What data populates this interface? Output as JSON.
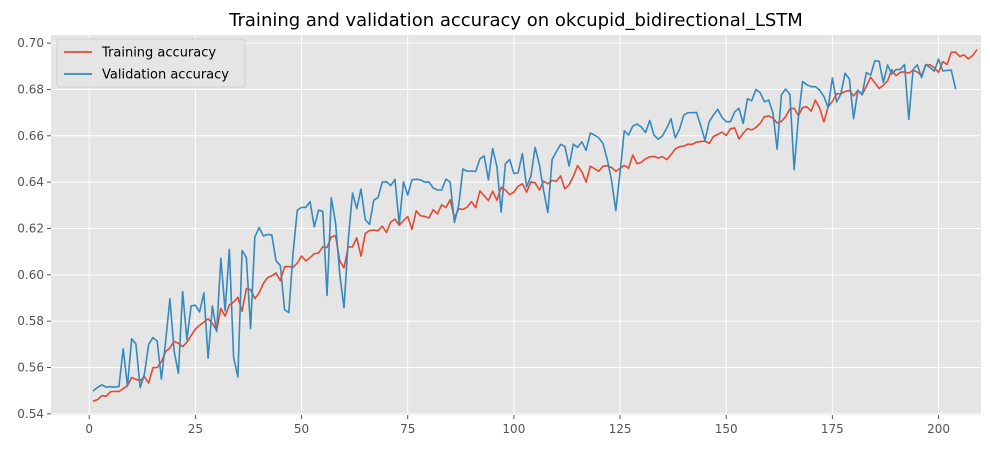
{
  "chart_data": {
    "type": "line",
    "title": "Training and validation accuracy on okcupid_bidirectional_LSTM",
    "xlabel": "",
    "ylabel": "",
    "xlim": [
      -9,
      210
    ],
    "ylim": [
      0.5395,
      0.7035
    ],
    "x_ticks": [
      0,
      25,
      50,
      75,
      100,
      125,
      150,
      175,
      200
    ],
    "y_ticks": [
      0.54,
      0.56,
      0.58,
      0.6,
      0.62,
      0.64,
      0.66,
      0.68,
      0.7
    ],
    "x_tick_labels": [
      "0",
      "25",
      "50",
      "75",
      "100",
      "125",
      "150",
      "175",
      "200"
    ],
    "y_tick_labels": [
      "0.54",
      "0.56",
      "0.58",
      "0.60",
      "0.62",
      "0.64",
      "0.66",
      "0.68",
      "0.70"
    ],
    "grid": true,
    "legend_position": "top-left",
    "x_start": 1,
    "series": [
      {
        "name": "Training accuracy",
        "color": "#e24a33",
        "values": [
          0.5455,
          0.5462,
          0.5479,
          0.5476,
          0.5495,
          0.5497,
          0.5496,
          0.5509,
          0.5521,
          0.5557,
          0.5549,
          0.5543,
          0.556,
          0.5533,
          0.5599,
          0.56,
          0.5625,
          0.5668,
          0.5685,
          0.5713,
          0.5704,
          0.569,
          0.5709,
          0.5738,
          0.5766,
          0.5782,
          0.5796,
          0.581,
          0.579,
          0.576,
          0.5855,
          0.5822,
          0.587,
          0.5882,
          0.5903,
          0.5843,
          0.5941,
          0.5936,
          0.5897,
          0.5922,
          0.5963,
          0.5988,
          0.5996,
          0.6008,
          0.5975,
          0.6035,
          0.6036,
          0.6032,
          0.6051,
          0.6081,
          0.606,
          0.6074,
          0.6091,
          0.6094,
          0.6121,
          0.6118,
          0.6163,
          0.6169,
          0.606,
          0.603,
          0.6121,
          0.612,
          0.616,
          0.608,
          0.6178,
          0.6191,
          0.6193,
          0.619,
          0.621,
          0.6183,
          0.6228,
          0.624,
          0.6214,
          0.6234,
          0.6252,
          0.6196,
          0.6276,
          0.6255,
          0.6252,
          0.6245,
          0.6281,
          0.6263,
          0.6302,
          0.629,
          0.6324,
          0.6246,
          0.6285,
          0.6282,
          0.6292,
          0.6316,
          0.629,
          0.6362,
          0.6341,
          0.6321,
          0.6361,
          0.6322,
          0.6377,
          0.6366,
          0.6346,
          0.6357,
          0.6382,
          0.6393,
          0.6357,
          0.6401,
          0.6397,
          0.6366,
          0.6404,
          0.6393,
          0.6407,
          0.6404,
          0.6427,
          0.6371,
          0.6388,
          0.6425,
          0.6471,
          0.6445,
          0.64,
          0.6469,
          0.6458,
          0.6447,
          0.6469,
          0.6471,
          0.6463,
          0.6447,
          0.6459,
          0.6472,
          0.646,
          0.6517,
          0.648,
          0.6485,
          0.6501,
          0.6509,
          0.6511,
          0.6504,
          0.651,
          0.6497,
          0.6518,
          0.6543,
          0.6553,
          0.6555,
          0.6564,
          0.6563,
          0.6573,
          0.6575,
          0.6577,
          0.6567,
          0.6597,
          0.6606,
          0.6616,
          0.6602,
          0.663,
          0.6634,
          0.6586,
          0.6611,
          0.6631,
          0.6625,
          0.6636,
          0.6654,
          0.6682,
          0.6686,
          0.6676,
          0.6655,
          0.6662,
          0.6683,
          0.6716,
          0.6719,
          0.6687,
          0.6722,
          0.6725,
          0.6706,
          0.6754,
          0.672,
          0.666,
          0.6725,
          0.6749,
          0.6781,
          0.6782,
          0.6791,
          0.6796,
          0.6772,
          0.6796,
          0.6777,
          0.6813,
          0.6853,
          0.6829,
          0.6804,
          0.6818,
          0.6837,
          0.6885,
          0.6859,
          0.6874,
          0.6876,
          0.687,
          0.6883,
          0.6875,
          0.686,
          0.6906,
          0.6906,
          0.6893,
          0.6874,
          0.692,
          0.6908,
          0.696,
          0.6962,
          0.6942,
          0.6949,
          0.6932,
          0.6946,
          0.697
        ]
      },
      {
        "name": "Validation accuracy",
        "color": "#348abd",
        "values": [
          0.55,
          0.5515,
          0.5525,
          0.5515,
          0.5517,
          0.5515,
          0.5518,
          0.568,
          0.552,
          0.5724,
          0.5701,
          0.5513,
          0.5572,
          0.57,
          0.5729,
          0.5714,
          0.555,
          0.5715,
          0.5896,
          0.567,
          0.5575,
          0.5928,
          0.572,
          0.5866,
          0.5869,
          0.584,
          0.5922,
          0.564,
          0.5866,
          0.5755,
          0.6072,
          0.5844,
          0.611,
          0.5644,
          0.5559,
          0.6105,
          0.6075,
          0.5768,
          0.6163,
          0.6204,
          0.6168,
          0.6174,
          0.6172,
          0.606,
          0.604,
          0.585,
          0.5837,
          0.6094,
          0.6279,
          0.6291,
          0.6291,
          0.6316,
          0.6207,
          0.6279,
          0.6274,
          0.5911,
          0.6333,
          0.6225,
          0.6001,
          0.5858,
          0.6151,
          0.6353,
          0.6286,
          0.637,
          0.6238,
          0.6218,
          0.6322,
          0.6333,
          0.64,
          0.6402,
          0.6385,
          0.6412,
          0.6219,
          0.6401,
          0.6344,
          0.641,
          0.6412,
          0.641,
          0.64,
          0.6401,
          0.6375,
          0.6366,
          0.6366,
          0.6413,
          0.64,
          0.6226,
          0.6299,
          0.6457,
          0.6447,
          0.6448,
          0.6446,
          0.65,
          0.6513,
          0.641,
          0.6545,
          0.6468,
          0.6271,
          0.6479,
          0.6498,
          0.6437,
          0.644,
          0.6523,
          0.638,
          0.6425,
          0.655,
          0.6476,
          0.6364,
          0.6269,
          0.6498,
          0.6531,
          0.6563,
          0.6554,
          0.647,
          0.6564,
          0.655,
          0.6574,
          0.6537,
          0.6612,
          0.6603,
          0.6591,
          0.6566,
          0.6497,
          0.6407,
          0.6277,
          0.6441,
          0.6622,
          0.6603,
          0.6642,
          0.6651,
          0.6638,
          0.6614,
          0.6666,
          0.6603,
          0.6585,
          0.66,
          0.6633,
          0.6674,
          0.6591,
          0.6628,
          0.6689,
          0.67,
          0.67,
          0.6701,
          0.6644,
          0.658,
          0.6661,
          0.669,
          0.6714,
          0.668,
          0.6661,
          0.6661,
          0.6703,
          0.6719,
          0.6653,
          0.676,
          0.6751,
          0.68,
          0.6786,
          0.6747,
          0.6754,
          0.6699,
          0.6542,
          0.6777,
          0.6802,
          0.6778,
          0.6454,
          0.668,
          0.6834,
          0.682,
          0.6812,
          0.6812,
          0.6797,
          0.677,
          0.6722,
          0.685,
          0.6746,
          0.678,
          0.687,
          0.6845,
          0.6674,
          0.6797,
          0.6778,
          0.6873,
          0.6862,
          0.6924,
          0.6922,
          0.683,
          0.6906,
          0.6866,
          0.6886,
          0.6886,
          0.6908,
          0.6671,
          0.6886,
          0.6906,
          0.6851,
          0.6908,
          0.6894,
          0.6879,
          0.6931,
          0.688,
          0.6882,
          0.6883,
          0.6804
        ]
      }
    ]
  }
}
